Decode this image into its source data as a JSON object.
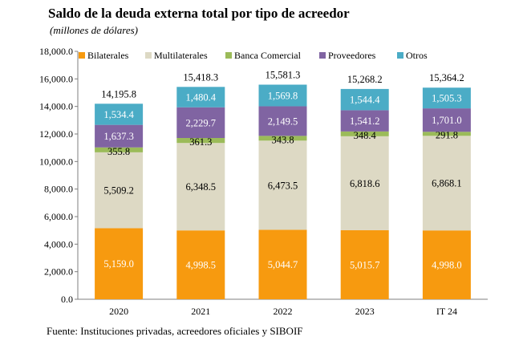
{
  "title": "Saldo de la deuda externa total por tipo de acreedor",
  "subtitle": "(millones de dólares)",
  "source": "Fuente: Instituciones privadas, acreedores oficiales y SIBOIF",
  "chart_data": {
    "type": "bar",
    "stacked": true,
    "categories": [
      "2020",
      "2021",
      "2022",
      "2023",
      "IT 24"
    ],
    "series": [
      {
        "name": "Bilaterales",
        "color": "#F79A0F",
        "labels": [
          "5,159.0",
          "4,998.5",
          "5,044.7",
          "5,015.7",
          "4,998.0"
        ],
        "values": [
          5159.0,
          4998.5,
          5044.7,
          5015.7,
          4998.0
        ]
      },
      {
        "name": "Multilaterales",
        "color": "#DDD9C4",
        "labels": [
          "5,509.2",
          "6,348.5",
          "6,473.5",
          "6,818.6",
          "6,868.1"
        ],
        "values": [
          5509.2,
          6348.5,
          6473.5,
          6818.6,
          6868.1
        ]
      },
      {
        "name": "Banca Comercial",
        "color": "#9BBB59",
        "labels": [
          "355.8",
          "361.3",
          "343.8",
          "348.4",
          "291.8"
        ],
        "values": [
          355.8,
          361.3,
          343.8,
          348.4,
          291.8
        ]
      },
      {
        "name": "Proveedores",
        "color": "#8064A2",
        "labels": [
          "1,637.3",
          "2,229.7",
          "2,149.5",
          "1,541.2",
          "1,701.0"
        ],
        "values": [
          1637.3,
          2229.7,
          2149.5,
          1541.2,
          1701.0
        ]
      },
      {
        "name": "Otros",
        "color": "#4BACC6",
        "labels": [
          "1,534.4",
          "1,480.4",
          "1,569.8",
          "1,544.4",
          "1,505.3"
        ],
        "values": [
          1534.4,
          1480.4,
          1569.8,
          1544.4,
          1505.3
        ]
      }
    ],
    "totals": {
      "labels": [
        "14,195.8",
        "15,418.3",
        "15,581.3",
        "15,268.2",
        "15,364.2"
      ],
      "values": [
        14195.8,
        15418.3,
        15581.3,
        15268.2,
        15364.2
      ]
    },
    "ylim": [
      0,
      18000
    ],
    "yticks": [
      "0.0",
      "2,000.0",
      "4,000.0",
      "6,000.0",
      "8,000.0",
      "10,000.0",
      "12,000.0",
      "14,000.0",
      "16,000.0",
      "18,000.0"
    ],
    "ytick_values": [
      0,
      2000,
      4000,
      6000,
      8000,
      10000,
      12000,
      14000,
      16000,
      18000
    ],
    "grid": false,
    "legend_position": "top"
  }
}
